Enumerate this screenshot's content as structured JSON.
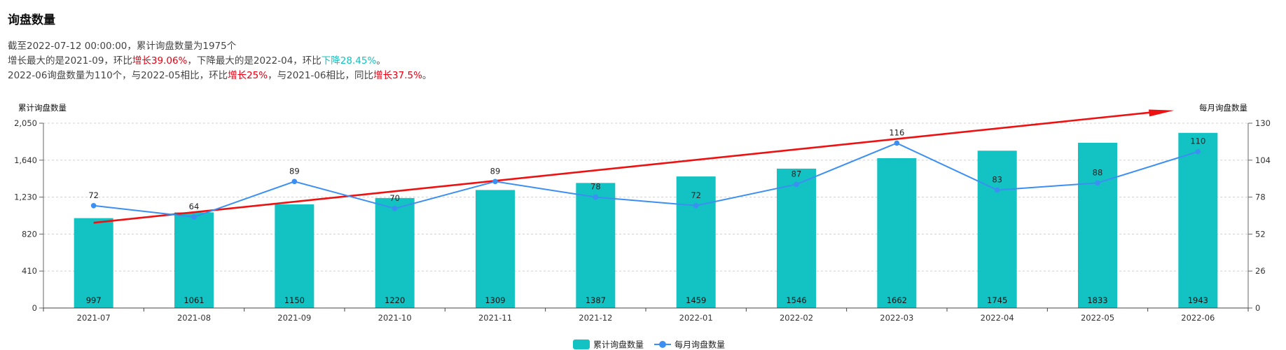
{
  "title": "询盘数量",
  "summary": {
    "line1": "截至2022-07-12 00:00:00，累计询盘数量为1975个",
    "line2_a": "增长最大的是2021-09，环比",
    "line2_b": "增长39.06%",
    "line2_c": "，下降最大的是2022-04，环比",
    "line2_d": "下降28.45%",
    "line2_e": "。",
    "line3_a": "2022-06询盘数量为110个，与2022-05相比，环比",
    "line3_b": "增长25%",
    "line3_c": "，与2021-06相比，同比",
    "line3_d": "增长37.5%",
    "line3_e": "。"
  },
  "colors": {
    "bar": "#13c2c2",
    "line": "#3b8ff3",
    "arrow": "#ee1111",
    "increase": "#e60012",
    "decrease": "#13c2c2"
  },
  "chart_data": {
    "type": "bar+line",
    "categories": [
      "2021-07",
      "2021-08",
      "2021-09",
      "2021-10",
      "2021-11",
      "2021-12",
      "2022-01",
      "2022-02",
      "2022-03",
      "2022-04",
      "2022-05",
      "2022-06"
    ],
    "series": [
      {
        "name": "累计询盘数量",
        "type": "bar",
        "axis": "left",
        "values": [
          997,
          1061,
          1150,
          1220,
          1309,
          1387,
          1459,
          1546,
          1662,
          1745,
          1833,
          1943
        ]
      },
      {
        "name": "每月询盘数量",
        "type": "line",
        "axis": "right",
        "values": [
          72,
          64,
          89,
          70,
          89,
          78,
          72,
          87,
          116,
          83,
          88,
          110
        ]
      }
    ],
    "left_axis": {
      "label": "累计询盘数量",
      "ticks": [
        "0",
        "410",
        "820",
        "1,230",
        "1,640",
        "2,050"
      ],
      "range": [
        0,
        2050
      ]
    },
    "right_axis": {
      "label": "每月询盘数量",
      "ticks": [
        "0",
        "26",
        "52",
        "78",
        "104",
        "130"
      ],
      "range": [
        0,
        130
      ]
    },
    "legend": {
      "position": "bottom-center"
    },
    "grid": true,
    "annotation": {
      "type": "trend-arrow",
      "color": "red",
      "from": [
        "2021-07",
        60
      ],
      "to": [
        "2022-06",
        139
      ]
    }
  }
}
